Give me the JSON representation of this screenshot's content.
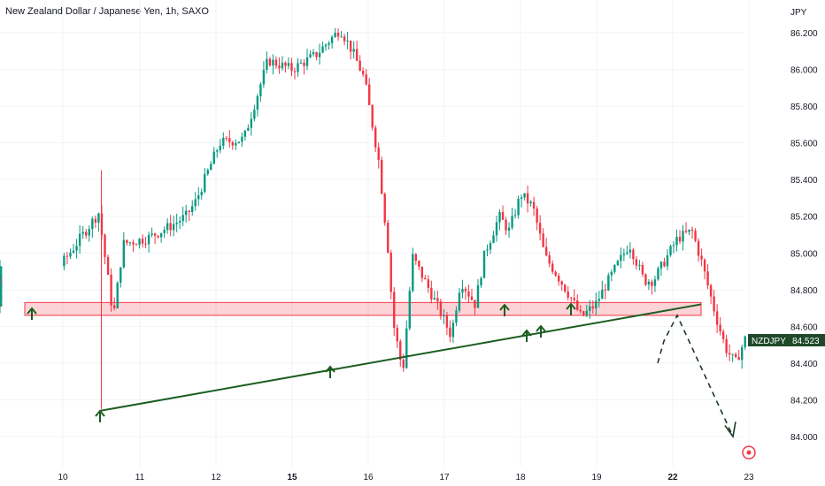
{
  "chart_data": {
    "type": "candlestick",
    "title": "New Zealand Dollar / Japanese Yen, 1h, SAXO",
    "y_unit": "JPY",
    "ylim": [
      83.9,
      86.3
    ],
    "y_ticks": [
      "86.200",
      "86.000",
      "85.800",
      "85.600",
      "85.400",
      "85.200",
      "85.000",
      "84.800",
      "84.600",
      "84.400",
      "84.200",
      "84.000"
    ],
    "x_ticks": [
      {
        "label": "10",
        "bold": false
      },
      {
        "label": "11",
        "bold": false
      },
      {
        "label": "12",
        "bold": false
      },
      {
        "label": "15",
        "bold": true
      },
      {
        "label": "16",
        "bold": false
      },
      {
        "label": "17",
        "bold": false
      },
      {
        "label": "18",
        "bold": false
      },
      {
        "label": "19",
        "bold": false
      },
      {
        "label": "22",
        "bold": true
      },
      {
        "label": "23",
        "bold": false
      }
    ],
    "last_price": {
      "symbol": "NZDJPY",
      "value": "84.523"
    },
    "price_path": [
      [
        0,
        84.72
      ],
      [
        2,
        84.85
      ],
      [
        4,
        85.22
      ],
      [
        4.6,
        84.65
      ],
      [
        5,
        85.05
      ],
      [
        6,
        85.08
      ],
      [
        7,
        85.15
      ],
      [
        7.6,
        85.2
      ],
      [
        8,
        85.28
      ],
      [
        9,
        85.6
      ],
      [
        10,
        85.62
      ],
      [
        11,
        86.05
      ],
      [
        12,
        86.0
      ],
      [
        13,
        86.08
      ],
      [
        14,
        86.22
      ],
      [
        14.5,
        86.1
      ],
      [
        15,
        85.95
      ],
      [
        15.6,
        85.5
      ],
      [
        16,
        85.0
      ],
      [
        16.2,
        84.62
      ],
      [
        16.6,
        84.35
      ],
      [
        17,
        84.98
      ],
      [
        18,
        84.72
      ],
      [
        18.6,
        84.55
      ],
      [
        19,
        84.85
      ],
      [
        19.6,
        84.72
      ],
      [
        20,
        85.0
      ],
      [
        20.6,
        85.2
      ],
      [
        21,
        85.12
      ],
      [
        21.5,
        85.32
      ],
      [
        22,
        85.25
      ],
      [
        22.5,
        84.98
      ],
      [
        23,
        84.88
      ],
      [
        23.6,
        84.75
      ],
      [
        24,
        84.65
      ],
      [
        24.6,
        84.72
      ],
      [
        25,
        84.82
      ],
      [
        26,
        85.05
      ],
      [
        26.6,
        84.85
      ],
      [
        27,
        84.85
      ],
      [
        28,
        85.08
      ],
      [
        28.6,
        85.12
      ],
      [
        29,
        84.95
      ],
      [
        29.6,
        84.65
      ],
      [
        30,
        84.48
      ],
      [
        30.4,
        84.4
      ],
      [
        30.8,
        84.53
      ]
    ],
    "support_zone": {
      "low": 84.66,
      "high": 84.73
    },
    "trendline": {
      "from": {
        "date": "10",
        "price": 84.14
      },
      "to": {
        "date": "22",
        "price": 84.72
      }
    },
    "projection": [
      [
        21.7,
        84.62
      ],
      [
        23.0,
        84.0
      ]
    ],
    "target_price": 83.98,
    "arrow_marks": [
      "support",
      "trendline",
      "support",
      "trendline",
      "trendline",
      "support"
    ]
  }
}
